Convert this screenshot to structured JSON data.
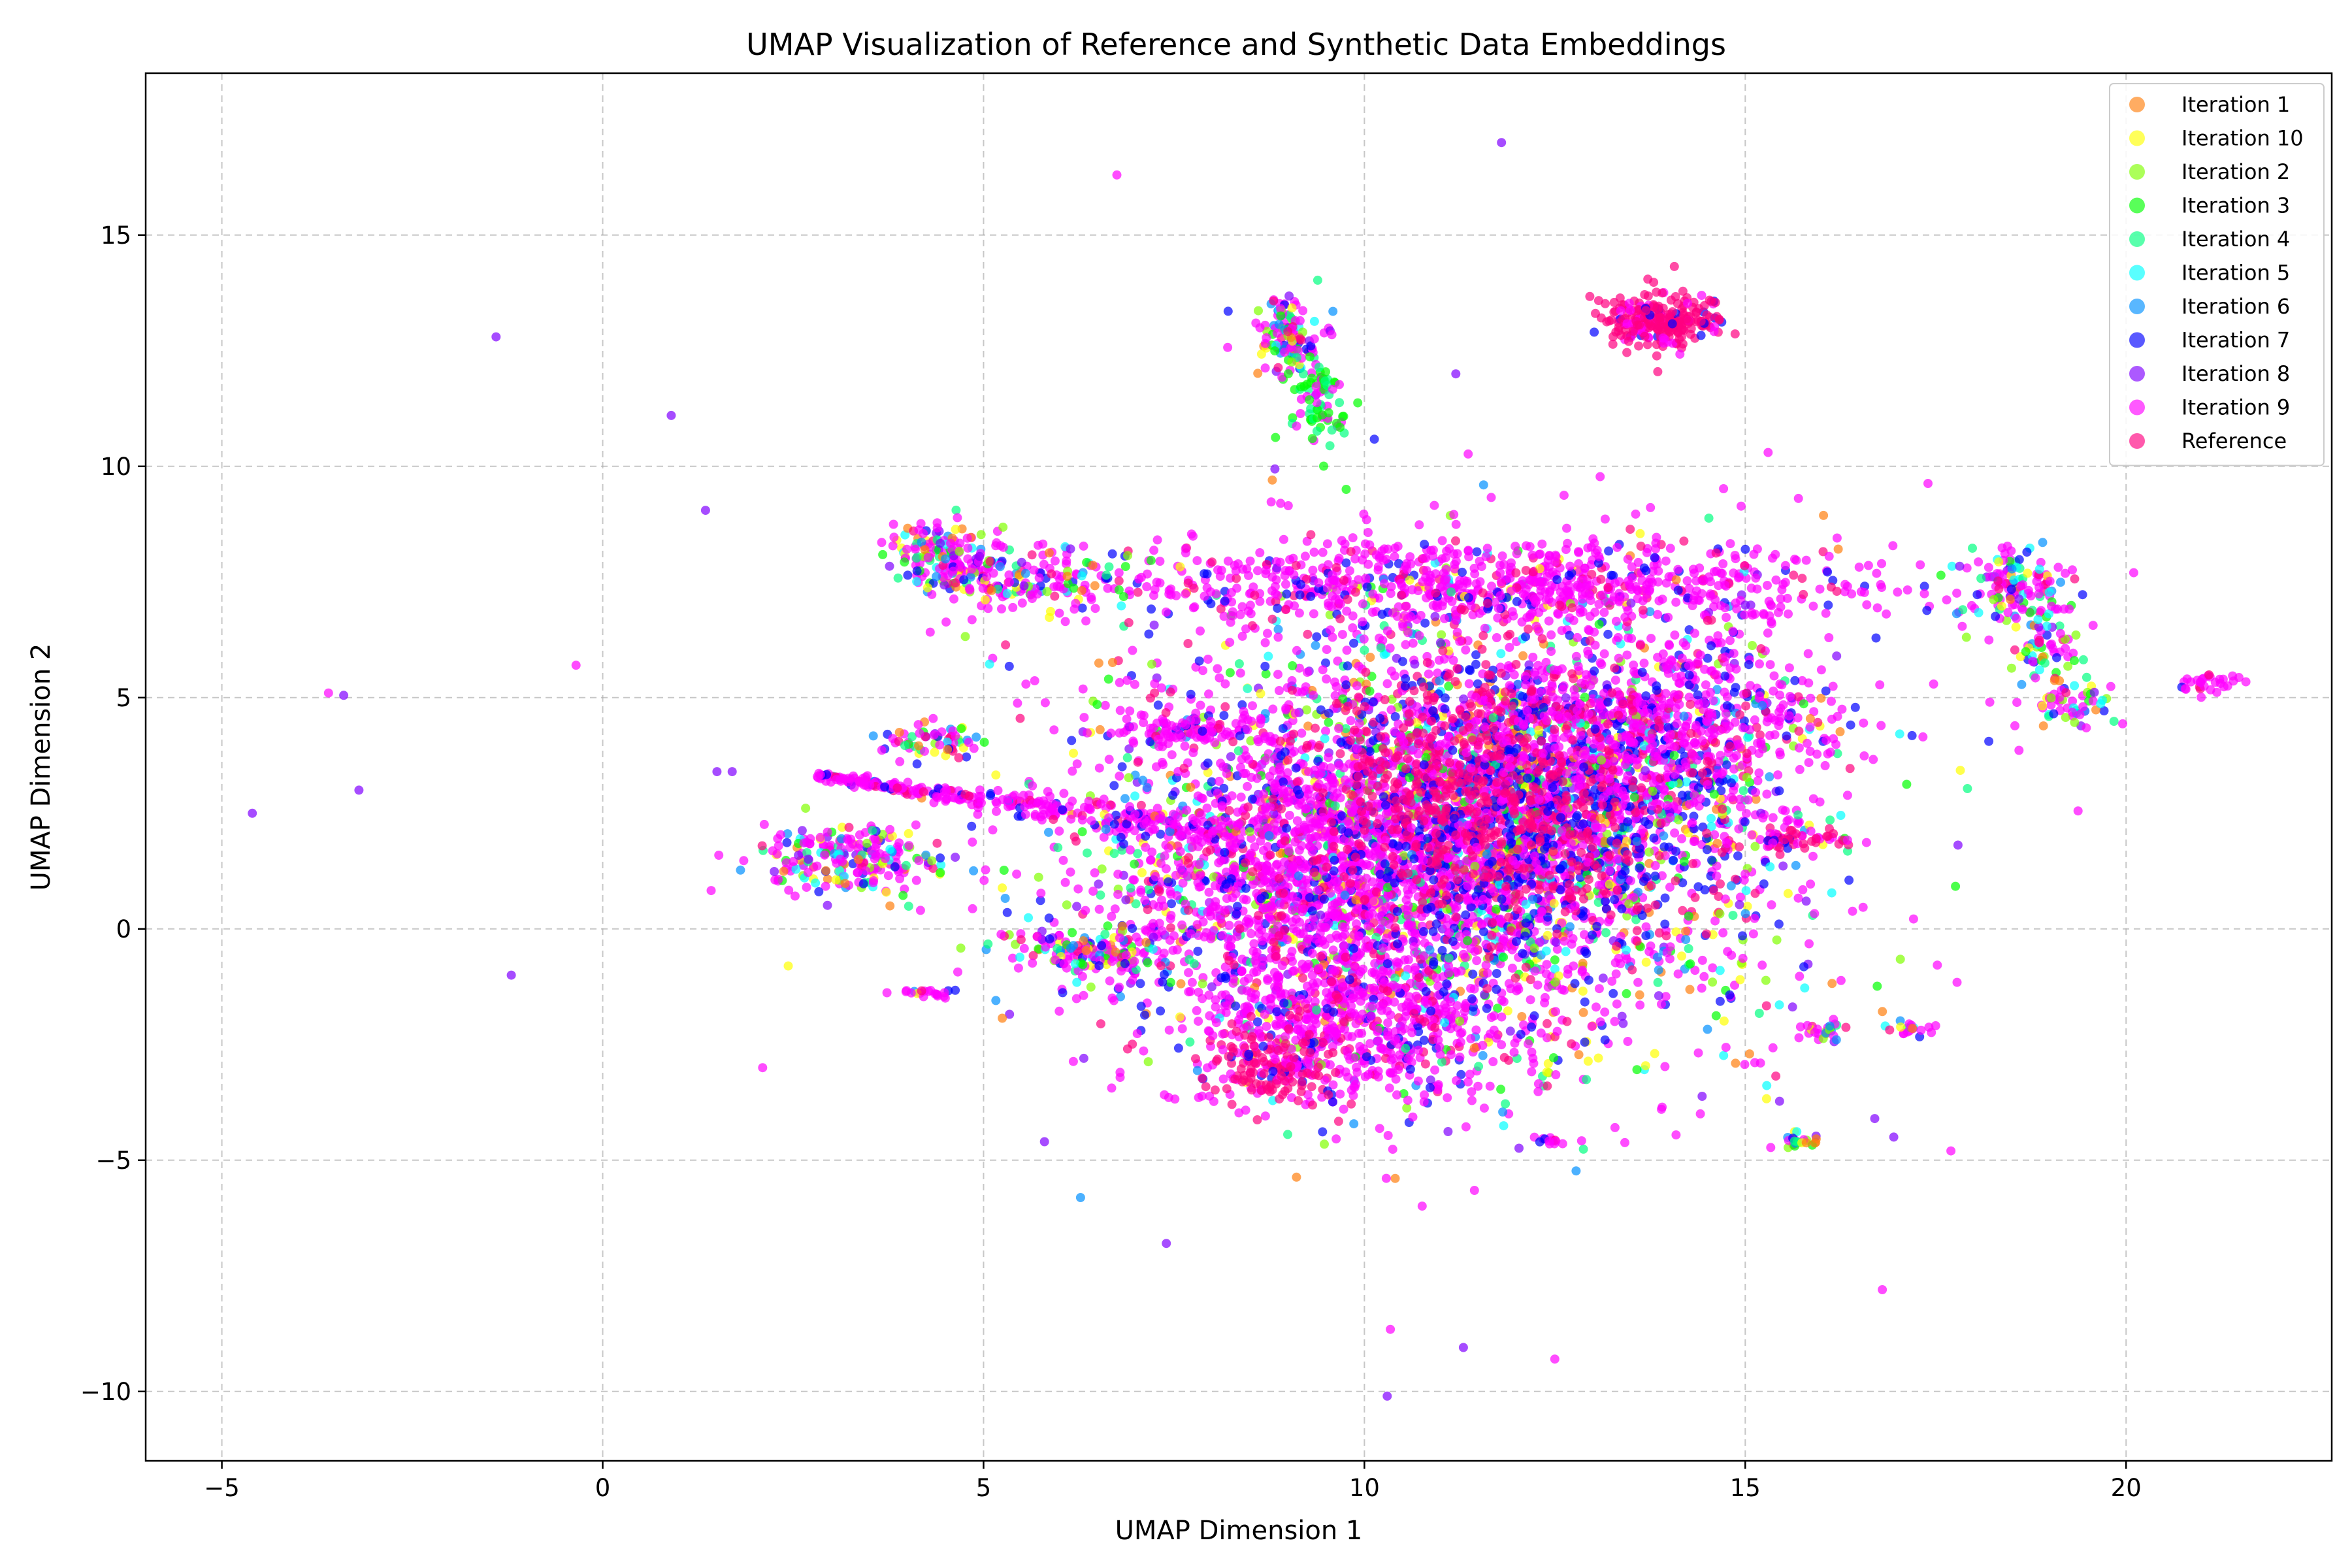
{
  "chart_data": {
    "type": "scatter",
    "title": "UMAP Visualization of Reference and Synthetic Data Embeddings",
    "xlabel": "UMAP Dimension 1",
    "ylabel": "UMAP Dimension 2",
    "xlim": [
      -6.0,
      22.7
    ],
    "ylim": [
      -11.5,
      18.5
    ],
    "xticks": [
      -5,
      0,
      5,
      10,
      15,
      20
    ],
    "xtick_labels": [
      "−5",
      "0",
      "5",
      "10",
      "15",
      "20"
    ],
    "yticks": [
      -10,
      -5,
      0,
      5,
      10,
      15
    ],
    "ytick_labels": [
      "−10",
      "−5",
      "0",
      "5",
      "10",
      "15"
    ],
    "grid": true,
    "legend_position": "top-right",
    "series": [
      {
        "name": "Iteration 1",
        "color": "#ff7f0e"
      },
      {
        "name": "Iteration 10",
        "color": "#ffff00"
      },
      {
        "name": "Iteration 2",
        "color": "#80ff00"
      },
      {
        "name": "Iteration 3",
        "color": "#00ff00"
      },
      {
        "name": "Iteration 4",
        "color": "#00ff80"
      },
      {
        "name": "Iteration 5",
        "color": "#00ffff"
      },
      {
        "name": "Iteration 6",
        "color": "#0090ff"
      },
      {
        "name": "Iteration 7",
        "color": "#0000ff"
      },
      {
        "name": "Iteration 8",
        "color": "#8000ff"
      },
      {
        "name": "Iteration 9",
        "color": "#ff00ff"
      },
      {
        "name": "Reference",
        "color": "#ff0080"
      }
    ],
    "clusters": [
      {
        "cx": 11.0,
        "cy": 2.0,
        "sx": 2.4,
        "sy": 2.6,
        "n": 2600,
        "mix": "all"
      },
      {
        "cx": 9.5,
        "cy": 1.0,
        "sx": 1.3,
        "sy": 1.8,
        "n": 1400,
        "mix": "magenta"
      },
      {
        "cx": 12.5,
        "cy": 2.5,
        "sx": 1.3,
        "sy": 1.6,
        "n": 1400,
        "mix": "blue"
      },
      {
        "cx": 11.5,
        "cy": 3.0,
        "sx": 1.1,
        "sy": 1.4,
        "n": 600,
        "mix": "reference"
      },
      {
        "cx": 11.5,
        "cy": 7.4,
        "sx": 2.6,
        "sy": 0.5,
        "n": 900,
        "mix": "magenta"
      },
      {
        "cx": 14.0,
        "cy": 4.6,
        "sx": 1.1,
        "sy": 0.8,
        "n": 500,
        "mix": "magenta"
      },
      {
        "cx": 10.0,
        "cy": -2.2,
        "sx": 1.1,
        "sy": 0.8,
        "n": 450,
        "mix": "magenta"
      },
      {
        "cx": 8.8,
        "cy": -3.0,
        "sx": 0.45,
        "sy": 0.4,
        "n": 140,
        "mix": "reference"
      },
      {
        "cx": 13.9,
        "cy": 13.2,
        "sx": 0.4,
        "sy": 0.3,
        "n": 260,
        "mix": "reference"
      },
      {
        "cx": 9.0,
        "cy": 12.8,
        "sx": 0.25,
        "sy": 0.45,
        "n": 120,
        "mix": "all"
      },
      {
        "cx": 9.4,
        "cy": 11.4,
        "sx": 0.2,
        "sy": 0.5,
        "n": 80,
        "mix": "green"
      },
      {
        "cx": 18.5,
        "cy": 7.5,
        "sx": 0.35,
        "sy": 0.35,
        "n": 110,
        "mix": "all"
      },
      {
        "cx": 18.9,
        "cy": 6.2,
        "sx": 0.25,
        "sy": 0.55,
        "n": 80,
        "mix": "all"
      },
      {
        "cx": 19.3,
        "cy": 4.8,
        "sx": 0.25,
        "sy": 0.25,
        "n": 50,
        "mix": "all"
      },
      {
        "cx": 3.3,
        "cy": 1.5,
        "sx": 0.6,
        "sy": 0.35,
        "n": 220,
        "mix": "all"
      },
      {
        "cx": 4.5,
        "cy": 8.1,
        "sx": 0.4,
        "sy": 0.35,
        "n": 130,
        "mix": "all"
      },
      {
        "cx": 5.5,
        "cy": 7.6,
        "sx": 0.7,
        "sy": 0.3,
        "n": 160,
        "mix": "all"
      },
      {
        "cx": 6.5,
        "cy": -0.5,
        "sx": 0.55,
        "sy": 0.3,
        "n": 150,
        "mix": "all"
      },
      {
        "cx": 4.3,
        "cy": 4.1,
        "sx": 0.35,
        "sy": 0.2,
        "n": 60,
        "mix": "all"
      },
      {
        "cx": 7.7,
        "cy": 4.3,
        "sx": 0.5,
        "sy": 0.2,
        "n": 100,
        "mix": "magenta"
      },
      {
        "cx": 15.6,
        "cy": 1.9,
        "sx": 0.35,
        "sy": 0.1,
        "n": 60,
        "mix": "reference"
      },
      {
        "cx": 21.1,
        "cy": 5.3,
        "sx": 0.25,
        "sy": 0.1,
        "n": 30,
        "mix": "magenta"
      },
      {
        "cx": 15.7,
        "cy": -4.6,
        "sx": 0.15,
        "sy": 0.1,
        "n": 25,
        "mix": "all"
      },
      {
        "cx": 16.1,
        "cy": -2.2,
        "sx": 0.15,
        "sy": 0.15,
        "n": 25,
        "mix": "all"
      },
      {
        "cx": 17.2,
        "cy": -2.2,
        "sx": 0.15,
        "sy": 0.08,
        "n": 20,
        "mix": "all"
      },
      {
        "cx": 4.3,
        "cy": -1.4,
        "sx": 0.2,
        "sy": 0.05,
        "n": 20,
        "mix": "magenta"
      },
      {
        "cx": 12.4,
        "cy": -4.6,
        "sx": 0.1,
        "sy": 0.1,
        "n": 12,
        "mix": "magenta"
      }
    ],
    "streak": {
      "x0": 2.8,
      "y0": 3.3,
      "x1": 8.5,
      "y1": 2.0,
      "n": 320
    },
    "isolated_points": [
      [
        -4.6,
        2.5
      ],
      [
        -3.6,
        5.1
      ],
      [
        -3.4,
        5.05
      ],
      [
        -3.2,
        3.0
      ],
      [
        -1.4,
        12.8
      ],
      [
        -1.2,
        -1.0
      ],
      [
        -0.35,
        5.7
      ],
      [
        0.9,
        11.1
      ],
      [
        1.35,
        9.05
      ],
      [
        1.5,
        3.4
      ],
      [
        1.7,
        3.4
      ],
      [
        2.1,
        -3.0
      ],
      [
        5.8,
        -4.6
      ],
      [
        6.75,
        16.3
      ],
      [
        7.4,
        -6.8
      ],
      [
        8.9,
        9.2
      ],
      [
        9.0,
        9.15
      ],
      [
        10.3,
        -10.1
      ],
      [
        11.2,
        12.0
      ],
      [
        11.3,
        -9.05
      ],
      [
        11.8,
        17.0
      ],
      [
        12.5,
        -9.3
      ],
      [
        13.9,
        -3.9
      ],
      [
        15.2,
        -2.9
      ],
      [
        15.3,
        10.3
      ],
      [
        15.8,
        0.6
      ],
      [
        16.0,
        5.6
      ],
      [
        16.2,
        5.9
      ],
      [
        16.7,
        -4.1
      ],
      [
        16.8,
        -7.8
      ],
      [
        16.95,
        -4.5
      ],
      [
        17.7,
        -4.8
      ],
      [
        20.1,
        7.7
      ],
      [
        15.0,
        7.0
      ]
    ]
  }
}
